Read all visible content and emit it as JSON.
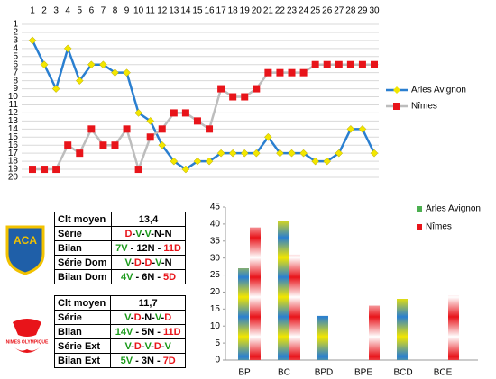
{
  "chart_data": [
    {
      "type": "line",
      "x": [
        1,
        2,
        3,
        4,
        5,
        6,
        7,
        8,
        9,
        10,
        11,
        12,
        13,
        14,
        15,
        16,
        17,
        18,
        19,
        20,
        21,
        22,
        23,
        24,
        25,
        26,
        27,
        28,
        29,
        30
      ],
      "series": [
        {
          "name": "Arles Avignon",
          "color": "#2a7fd0",
          "marker_color": "#f2e600",
          "marker": "diamond",
          "values": [
            3,
            6,
            9,
            4,
            8,
            6,
            6,
            7,
            7,
            12,
            13,
            16,
            18,
            19,
            18,
            18,
            17,
            17,
            17,
            17,
            15,
            17,
            17,
            17,
            18,
            18,
            17,
            14,
            14,
            17
          ]
        },
        {
          "name": "Nîmes",
          "color": "#bdbdbd",
          "marker_color": "#e8141a",
          "marker": "square",
          "values": [
            19,
            19,
            19,
            16,
            17,
            14,
            16,
            16,
            14,
            19,
            15,
            14,
            12,
            12,
            13,
            14,
            9,
            10,
            10,
            9,
            7,
            7,
            7,
            7,
            6,
            6,
            6,
            6,
            6,
            6
          ]
        }
      ],
      "xlim": [
        1,
        30
      ],
      "ylim": [
        1,
        20
      ],
      "y_inverted": true,
      "xticks": [
        1,
        2,
        3,
        4,
        5,
        6,
        7,
        8,
        9,
        10,
        11,
        12,
        13,
        14,
        15,
        16,
        17,
        18,
        19,
        20,
        21,
        22,
        23,
        24,
        25,
        26,
        27,
        28,
        29,
        30
      ],
      "yticks": [
        1,
        2,
        3,
        4,
        5,
        6,
        7,
        8,
        9,
        10,
        11,
        12,
        13,
        14,
        15,
        16,
        17,
        18,
        19,
        20
      ],
      "grid": true,
      "legend": "right"
    },
    {
      "type": "bar",
      "categories": [
        "BP",
        "BC",
        "BPD",
        "BPE",
        "BCD",
        "BCE"
      ],
      "series": [
        {
          "name": "Arles Avignon",
          "color": "#2a7fd0",
          "stripe_color": "#f2e600",
          "legend_color": "#4caf50",
          "values": [
            27,
            41,
            13,
            null,
            18,
            null
          ]
        },
        {
          "name": "Nîmes",
          "color": "#e8141a",
          "stripe_color": "#ffffff",
          "legend_color": "#e8141a",
          "values": [
            39,
            31,
            null,
            16,
            null,
            19
          ]
        }
      ],
      "ylim": [
        0,
        45
      ],
      "yticks": [
        0,
        5,
        10,
        15,
        20,
        25,
        30,
        35,
        40,
        45
      ],
      "legend": "top-right"
    }
  ],
  "logos": [
    "ACA",
    "NIMES OLYMPIQUE"
  ],
  "tables": [
    {
      "rows": [
        [
          "Clt moyen",
          "13,4"
        ],
        [
          "Série",
          "D-V-V-N-N"
        ],
        [
          "Bilan",
          "7V - 12N - 11D"
        ],
        [
          "Série Dom",
          "V-D-D-V-N"
        ],
        [
          "Bilan Dom",
          "4V - 6N - 5D"
        ]
      ]
    },
    {
      "rows": [
        [
          "Clt moyen",
          "11,7"
        ],
        [
          "Série",
          "V-D-N-V-D"
        ],
        [
          "Bilan",
          "14V - 5N - 11D"
        ],
        [
          "Série Ext",
          "V-D-V-D-V"
        ],
        [
          "Bilan Ext",
          "5V - 3N - 7D"
        ]
      ]
    }
  ]
}
